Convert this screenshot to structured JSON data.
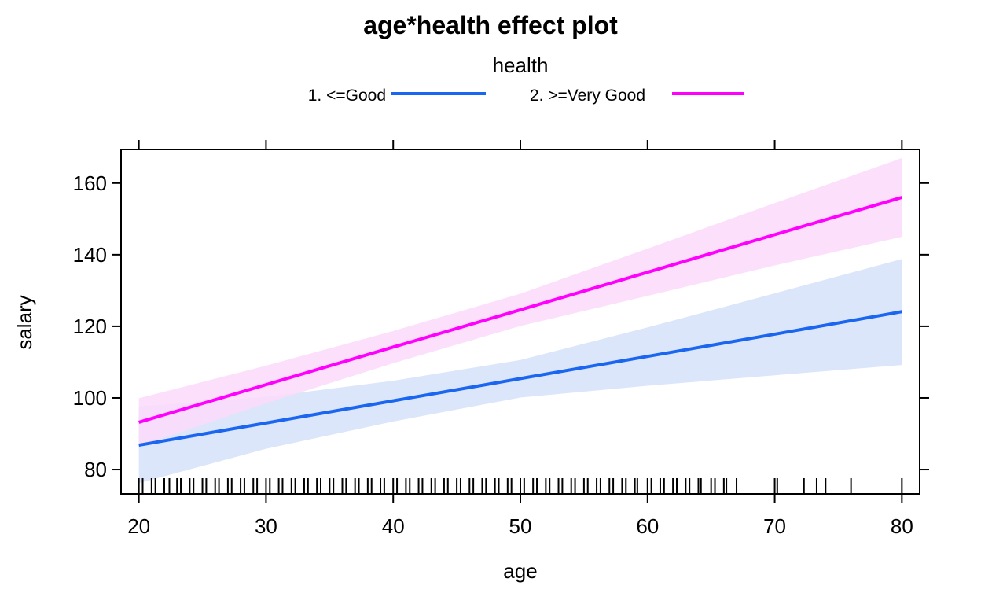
{
  "chart_data": {
    "type": "line",
    "title": "age*health effect plot",
    "xlabel": "age",
    "ylabel": "salary",
    "xlim": [
      18.6,
      81.4
    ],
    "ylim": [
      73.2,
      169.4
    ],
    "x_ticks": [
      20,
      30,
      40,
      50,
      60,
      70,
      80
    ],
    "y_ticks": [
      80,
      100,
      120,
      140,
      160
    ],
    "grid": false,
    "legend": {
      "title": "health",
      "placement": "top",
      "entries": [
        "1. <=Good",
        "2. >=Very Good"
      ]
    },
    "series": [
      {
        "name": "1. <=Good",
        "color": "#1a66f0",
        "band_color": "#dce6fb",
        "x": [
          20,
          30,
          40,
          50,
          60,
          70,
          80
        ],
        "y": [
          86.8,
          93.0,
          99.2,
          105.4,
          111.6,
          117.8,
          124.1
        ],
        "lower": [
          76.2,
          85.8,
          93.4,
          100.1,
          103.4,
          106.3,
          109.2
        ],
        "upper": [
          97.6,
          100.3,
          104.8,
          110.6,
          119.7,
          129.2,
          138.8
        ]
      },
      {
        "name": "2. >=Very Good",
        "color": "#ff00ff",
        "band_color": "#fcd9fa",
        "x": [
          20,
          30,
          40,
          50,
          60,
          70,
          80
        ],
        "y": [
          93.2,
          103.7,
          114.2,
          124.6,
          135.1,
          145.6,
          156.0
        ],
        "lower": [
          86.5,
          98.5,
          109.7,
          120.1,
          128.5,
          137.0,
          145.0
        ],
        "upper": [
          99.9,
          109.0,
          118.7,
          129.1,
          141.7,
          154.4,
          167.0
        ]
      }
    ],
    "rug": [
      20,
      20.3,
      21,
      21.3,
      22,
      22.4,
      23,
      23.3,
      24,
      24.3,
      25,
      25.3,
      26,
      26.3,
      27,
      27.3,
      28,
      28.3,
      29,
      29.3,
      30,
      30.3,
      31,
      31.3,
      32,
      32.3,
      33,
      33.3,
      34,
      34.3,
      35,
      35.3,
      36,
      36.3,
      37,
      37.3,
      38,
      38.3,
      39,
      39.3,
      40,
      40.3,
      41,
      41.3,
      42,
      42.3,
      43,
      43.3,
      44,
      44.3,
      45,
      45.3,
      46,
      46.3,
      47,
      47.3,
      48,
      48.3,
      49,
      49.3,
      50,
      50.3,
      51,
      51.3,
      52,
      52.3,
      53,
      53.3,
      54,
      54.3,
      55,
      55.3,
      56,
      56.3,
      57,
      57.3,
      58,
      58.3,
      59,
      59.2,
      60,
      60.3,
      61,
      61.3,
      62,
      62.3,
      63,
      63.3,
      64,
      64.2,
      65,
      65.3,
      66,
      66.2,
      67,
      70,
      70.2,
      72.3,
      73.3,
      74,
      76,
      80
    ]
  }
}
